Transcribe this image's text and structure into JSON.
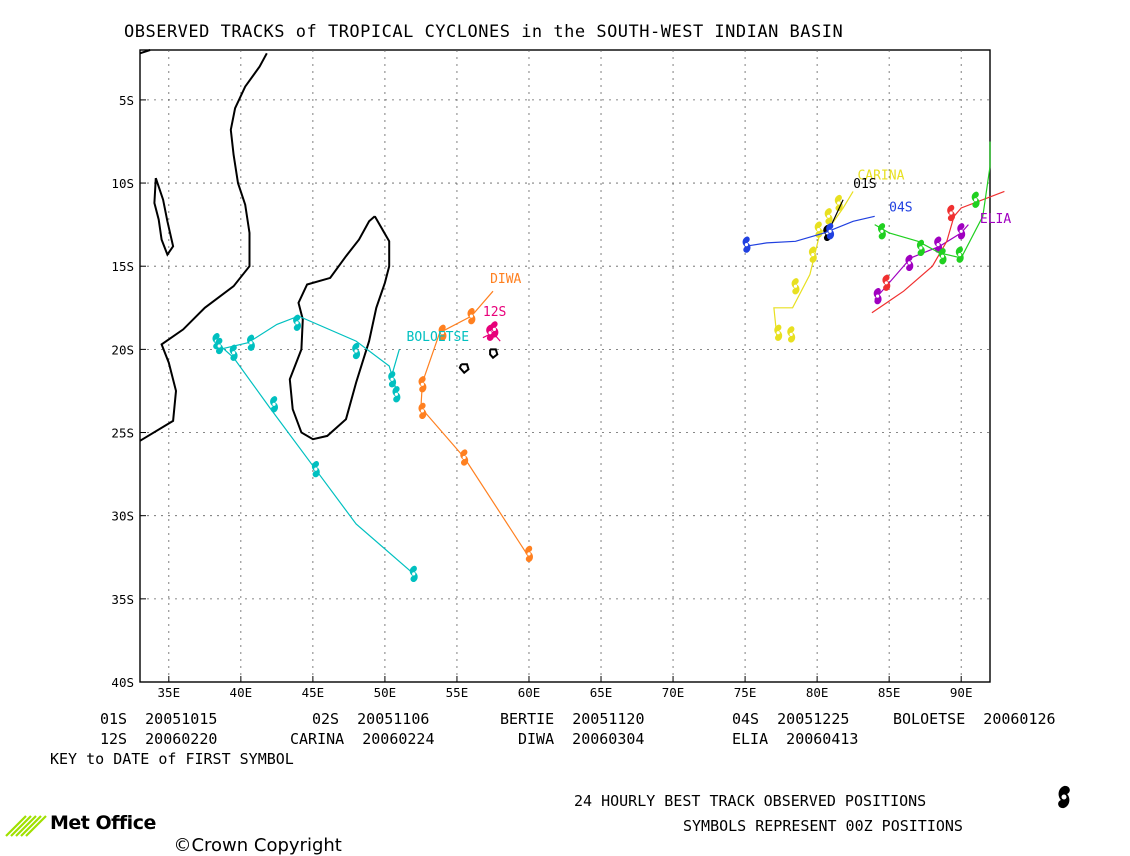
{
  "title": "OBSERVED TRACKS of TROPICAL CYCLONES in the SOUTH-WEST INDIAN BASIN",
  "axes": {
    "lon_ticks": [
      "35E",
      "40E",
      "45E",
      "50E",
      "55E",
      "60E",
      "65E",
      "70E",
      "75E",
      "80E",
      "85E",
      "90E"
    ],
    "lat_ticks": [
      "5S",
      "10S",
      "15S",
      "20S",
      "25S",
      "30S",
      "35S",
      "40S"
    ],
    "lon_range": [
      33,
      92
    ],
    "lat_range": [
      -40,
      -2
    ]
  },
  "chart_data": {
    "type": "line",
    "x_units": "degrees longitude East",
    "y_units": "degrees latitude (negative = South)",
    "series": [
      {
        "name": "BOLOETSE",
        "color": "#00c0c0",
        "points": [
          [
            52.0,
            -33.5
          ],
          [
            48.0,
            -30.5
          ],
          [
            45.0,
            -27.0
          ],
          [
            42.0,
            -23.5
          ],
          [
            39.5,
            -20.5
          ],
          [
            38.2,
            -19.5
          ],
          [
            38.5,
            -20.0
          ],
          [
            40.5,
            -19.6
          ],
          [
            42.5,
            -18.5
          ],
          [
            44.0,
            -18.0
          ],
          [
            48.0,
            -19.5
          ],
          [
            50.3,
            -21.0
          ],
          [
            50.8,
            -22.5
          ],
          [
            50.5,
            -21.5
          ],
          [
            51.0,
            -20.0
          ]
        ],
        "markers": [
          [
            52.0,
            -33.5
          ],
          [
            45.2,
            -27.2
          ],
          [
            42.3,
            -23.3
          ],
          [
            39.5,
            -20.2
          ],
          [
            38.3,
            -19.5
          ],
          [
            38.5,
            -19.8
          ],
          [
            40.7,
            -19.6
          ],
          [
            43.9,
            -18.4
          ],
          [
            48.0,
            -20.1
          ],
          [
            50.5,
            -21.8
          ],
          [
            50.8,
            -22.7
          ]
        ]
      },
      {
        "name": "DIWA",
        "color": "#ff8020",
        "points": [
          [
            60.0,
            -32.5
          ],
          [
            55.5,
            -26.5
          ],
          [
            52.5,
            -23.5
          ],
          [
            52.6,
            -22.0
          ],
          [
            53.8,
            -19.0
          ],
          [
            56.0,
            -18.0
          ],
          [
            57.5,
            -16.5
          ]
        ],
        "markers": [
          [
            60.0,
            -32.3
          ],
          [
            55.5,
            -26.5
          ],
          [
            52.6,
            -23.7
          ],
          [
            52.6,
            -22.1
          ],
          [
            54.0,
            -19.0
          ],
          [
            56.0,
            -18.0
          ]
        ]
      },
      {
        "name": "12S",
        "color": "#e8007a",
        "points": [
          [
            56.8,
            -19.3
          ],
          [
            57.5,
            -19.0
          ],
          [
            58.0,
            -19.5
          ]
        ],
        "markers": [
          [
            57.3,
            -19.0
          ],
          [
            57.6,
            -18.8
          ]
        ]
      },
      {
        "name": "CARINA",
        "color": "#e8e020",
        "points": [
          [
            77.2,
            -19.2
          ],
          [
            77.0,
            -17.5
          ],
          [
            78.3,
            -17.5
          ],
          [
            79.5,
            -15.5
          ],
          [
            80.2,
            -13.0
          ],
          [
            81.0,
            -12.5
          ],
          [
            81.8,
            -11.5
          ],
          [
            82.5,
            -10.5
          ]
        ],
        "markers": [
          [
            77.3,
            -19.0
          ],
          [
            78.2,
            -19.1
          ],
          [
            78.5,
            -16.2
          ],
          [
            79.7,
            -14.3
          ],
          [
            80.1,
            -12.8
          ],
          [
            80.8,
            -12.0
          ],
          [
            81.5,
            -11.2
          ]
        ]
      },
      {
        "name": "01S",
        "color": "#000000",
        "points": [
          [
            80.5,
            -13.3
          ],
          [
            81.0,
            -12.5
          ],
          [
            81.8,
            -11.0
          ]
        ],
        "markers": [
          [
            80.7,
            -13.0
          ]
        ]
      },
      {
        "name": "04S",
        "color": "#2040e0",
        "points": [
          [
            75.0,
            -13.8
          ],
          [
            76.5,
            -13.6
          ],
          [
            78.5,
            -13.5
          ],
          [
            80.5,
            -13.0
          ],
          [
            82.5,
            -12.3
          ],
          [
            84.0,
            -12.0
          ]
        ],
        "markers": [
          [
            75.1,
            -13.7
          ],
          [
            80.9,
            -12.9
          ]
        ]
      },
      {
        "name": "ELIA",
        "color": "#a000c0",
        "points": [
          [
            84.0,
            -17.0
          ],
          [
            86.5,
            -14.5
          ],
          [
            88.5,
            -13.8
          ],
          [
            90.0,
            -13.0
          ],
          [
            90.5,
            -12.5
          ]
        ],
        "markers": [
          [
            84.2,
            -16.8
          ],
          [
            86.4,
            -14.8
          ],
          [
            88.4,
            -13.7
          ],
          [
            90.0,
            -12.9
          ]
        ]
      },
      {
        "name": "red track",
        "color": "#f03030",
        "points": [
          [
            83.8,
            -17.8
          ],
          [
            86.0,
            -16.5
          ],
          [
            88.0,
            -15.0
          ],
          [
            89.0,
            -13.5
          ],
          [
            89.5,
            -12.0
          ],
          [
            90.0,
            -11.5
          ],
          [
            93.0,
            -10.5
          ]
        ],
        "markers": [
          [
            84.8,
            -16.0
          ],
          [
            89.3,
            -11.8
          ]
        ]
      },
      {
        "name": "green track",
        "color": "#20d020",
        "points": [
          [
            84.0,
            -12.5
          ],
          [
            85.0,
            -13.0
          ],
          [
            87.0,
            -13.5
          ],
          [
            88.5,
            -14.2
          ],
          [
            90.0,
            -14.5
          ],
          [
            91.5,
            -12.0
          ],
          [
            92.0,
            -9.0
          ],
          [
            92.0,
            -7.5
          ]
        ],
        "markers": [
          [
            84.5,
            -12.9
          ],
          [
            87.2,
            -13.9
          ],
          [
            88.7,
            -14.4
          ],
          [
            89.9,
            -14.3
          ],
          [
            91.0,
            -11.0
          ]
        ]
      }
    ],
    "track_labels": [
      {
        "text": "CARINA",
        "lon": 82.8,
        "lat": -9.8,
        "color": "#e8e020"
      },
      {
        "text": "01S",
        "lon": 82.5,
        "lat": -10.3,
        "color": "#000000"
      },
      {
        "text": "04S",
        "lon": 85.0,
        "lat": -11.7,
        "color": "#2040e0"
      },
      {
        "text": "ELIA",
        "lon": 91.3,
        "lat": -12.4,
        "color": "#a000c0"
      },
      {
        "text": "DIWA",
        "lon": 57.3,
        "lat": -16.0,
        "color": "#ff8020"
      },
      {
        "text": "12S",
        "lon": 56.8,
        "lat": -18.0,
        "color": "#e8007a"
      },
      {
        "text": "BOLOETSE",
        "lon": 51.5,
        "lat": -19.5,
        "color": "#00c0c0"
      }
    ]
  },
  "key": {
    "rows": [
      [
        "01S  20051015",
        "02S  20051106",
        "BERTIE  20051120",
        "04S  20051225",
        "BOLOETSE  20060126"
      ],
      [
        "12S  20060220",
        "CARINA  20060224",
        "DIWA  20060304",
        "ELIA  20060413"
      ]
    ],
    "caption": "KEY to DATE of FIRST SYMBOL"
  },
  "footer": {
    "line1": "24 HOURLY BEST TRACK OBSERVED POSITIONS",
    "line2": "SYMBOLS REPRESENT 00Z POSITIONS",
    "brand": "Met Office",
    "copyright": "Crown Copyright"
  },
  "colors": {
    "axis": "#000000",
    "grid": "#606060",
    "land": "#000000"
  },
  "icons": {
    "cyclone_symbol": "cyclone-icon",
    "logo": "met-office-logo-icon"
  }
}
